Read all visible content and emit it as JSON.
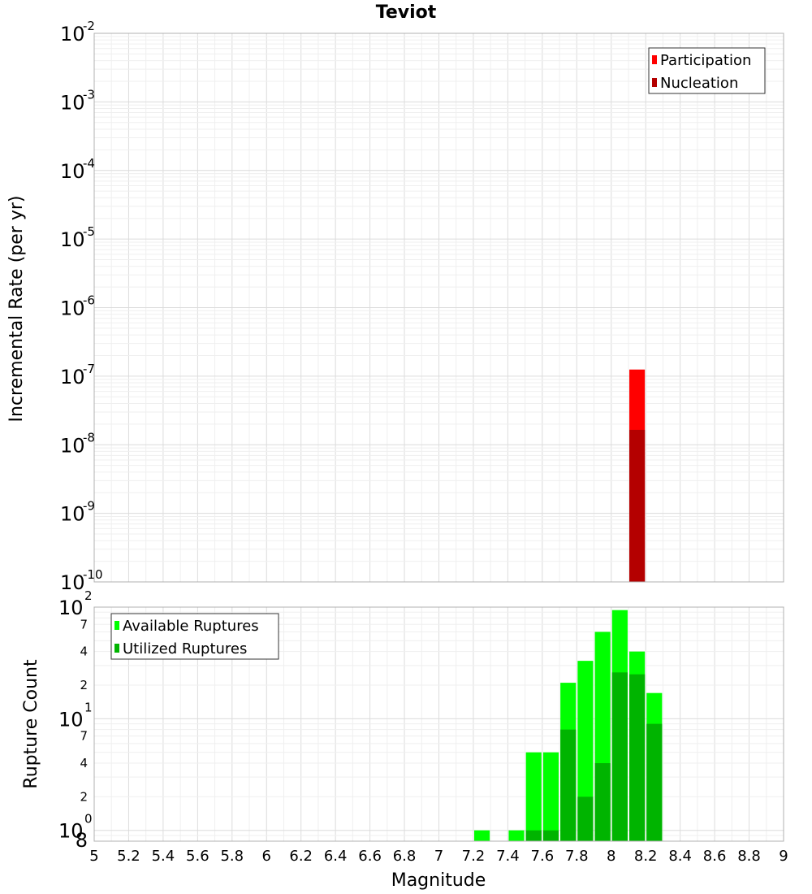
{
  "chart_data": [
    {
      "type": "bar",
      "title": "Teviot",
      "xlabel": "",
      "ylabel": "Incremental Rate (per yr)",
      "yscale": "log",
      "ylim": [
        1e-10,
        0.01
      ],
      "xlim": [
        5,
        9
      ],
      "y_tick_labels": [
        {
          "base": "10",
          "exp": "-10"
        },
        {
          "base": "10",
          "exp": "-9"
        },
        {
          "base": "10",
          "exp": "-8"
        },
        {
          "base": "10",
          "exp": "-7"
        },
        {
          "base": "10",
          "exp": "-6"
        },
        {
          "base": "10",
          "exp": "-5"
        },
        {
          "base": "10",
          "exp": "-4"
        },
        {
          "base": "10",
          "exp": "-3"
        },
        {
          "base": "10",
          "exp": "-2"
        }
      ],
      "grid": true,
      "legend_position": "top-right",
      "bar_width": 0.09,
      "series": [
        {
          "name": "Participation",
          "color": "#ff0000",
          "x": [
            8.15
          ],
          "values": [
            1.25e-07
          ]
        },
        {
          "name": "Nucleation",
          "color": "#b40000",
          "x": [
            8.15
          ],
          "values": [
            1.65e-08
          ]
        }
      ]
    },
    {
      "type": "bar",
      "title": "",
      "xlabel": "Magnitude",
      "ylabel": "Rupture Count",
      "yscale": "log",
      "ylim": [
        0.8,
        100
      ],
      "xlim": [
        5,
        9
      ],
      "x_tick_labels": [
        "5",
        "5.2",
        "5.4",
        "5.6",
        "5.8",
        "6",
        "6.2",
        "6.4",
        "6.6",
        "6.8",
        "7",
        "7.2",
        "7.4",
        "7.6",
        "7.8",
        "8",
        "8.2",
        "8.4",
        "8.6",
        "8.8",
        "9"
      ],
      "y_major_labels": [
        {
          "base": "10",
          "exp": "0"
        },
        {
          "base": "10",
          "exp": "1"
        },
        {
          "base": "10",
          "exp": "2"
        }
      ],
      "y_minor_labels": [
        {
          "value": 0.8,
          "label": "8"
        },
        {
          "value": 2,
          "label": "2"
        },
        {
          "value": 4,
          "label": "4"
        },
        {
          "value": 7,
          "label": "7"
        },
        {
          "value": 20,
          "label": "2"
        },
        {
          "value": 40,
          "label": "4"
        },
        {
          "value": 70,
          "label": "7"
        }
      ],
      "grid": true,
      "legend_position": "top-left",
      "bar_width": 0.09,
      "series": [
        {
          "name": "Available Ruptures",
          "color": "#00ff00",
          "x": [
            7.25,
            7.45,
            7.55,
            7.65,
            7.75,
            7.85,
            7.95,
            8.05,
            8.15,
            8.25
          ],
          "values": [
            1,
            1,
            5,
            5,
            21,
            33,
            60,
            94,
            40,
            17
          ]
        },
        {
          "name": "Utilized Ruptures",
          "color": "#00b400",
          "x": [
            7.55,
            7.65,
            7.75,
            7.85,
            7.95,
            8.05,
            8.15,
            8.25
          ],
          "values": [
            1,
            1,
            8,
            2,
            4,
            26,
            25,
            9
          ]
        }
      ]
    }
  ]
}
